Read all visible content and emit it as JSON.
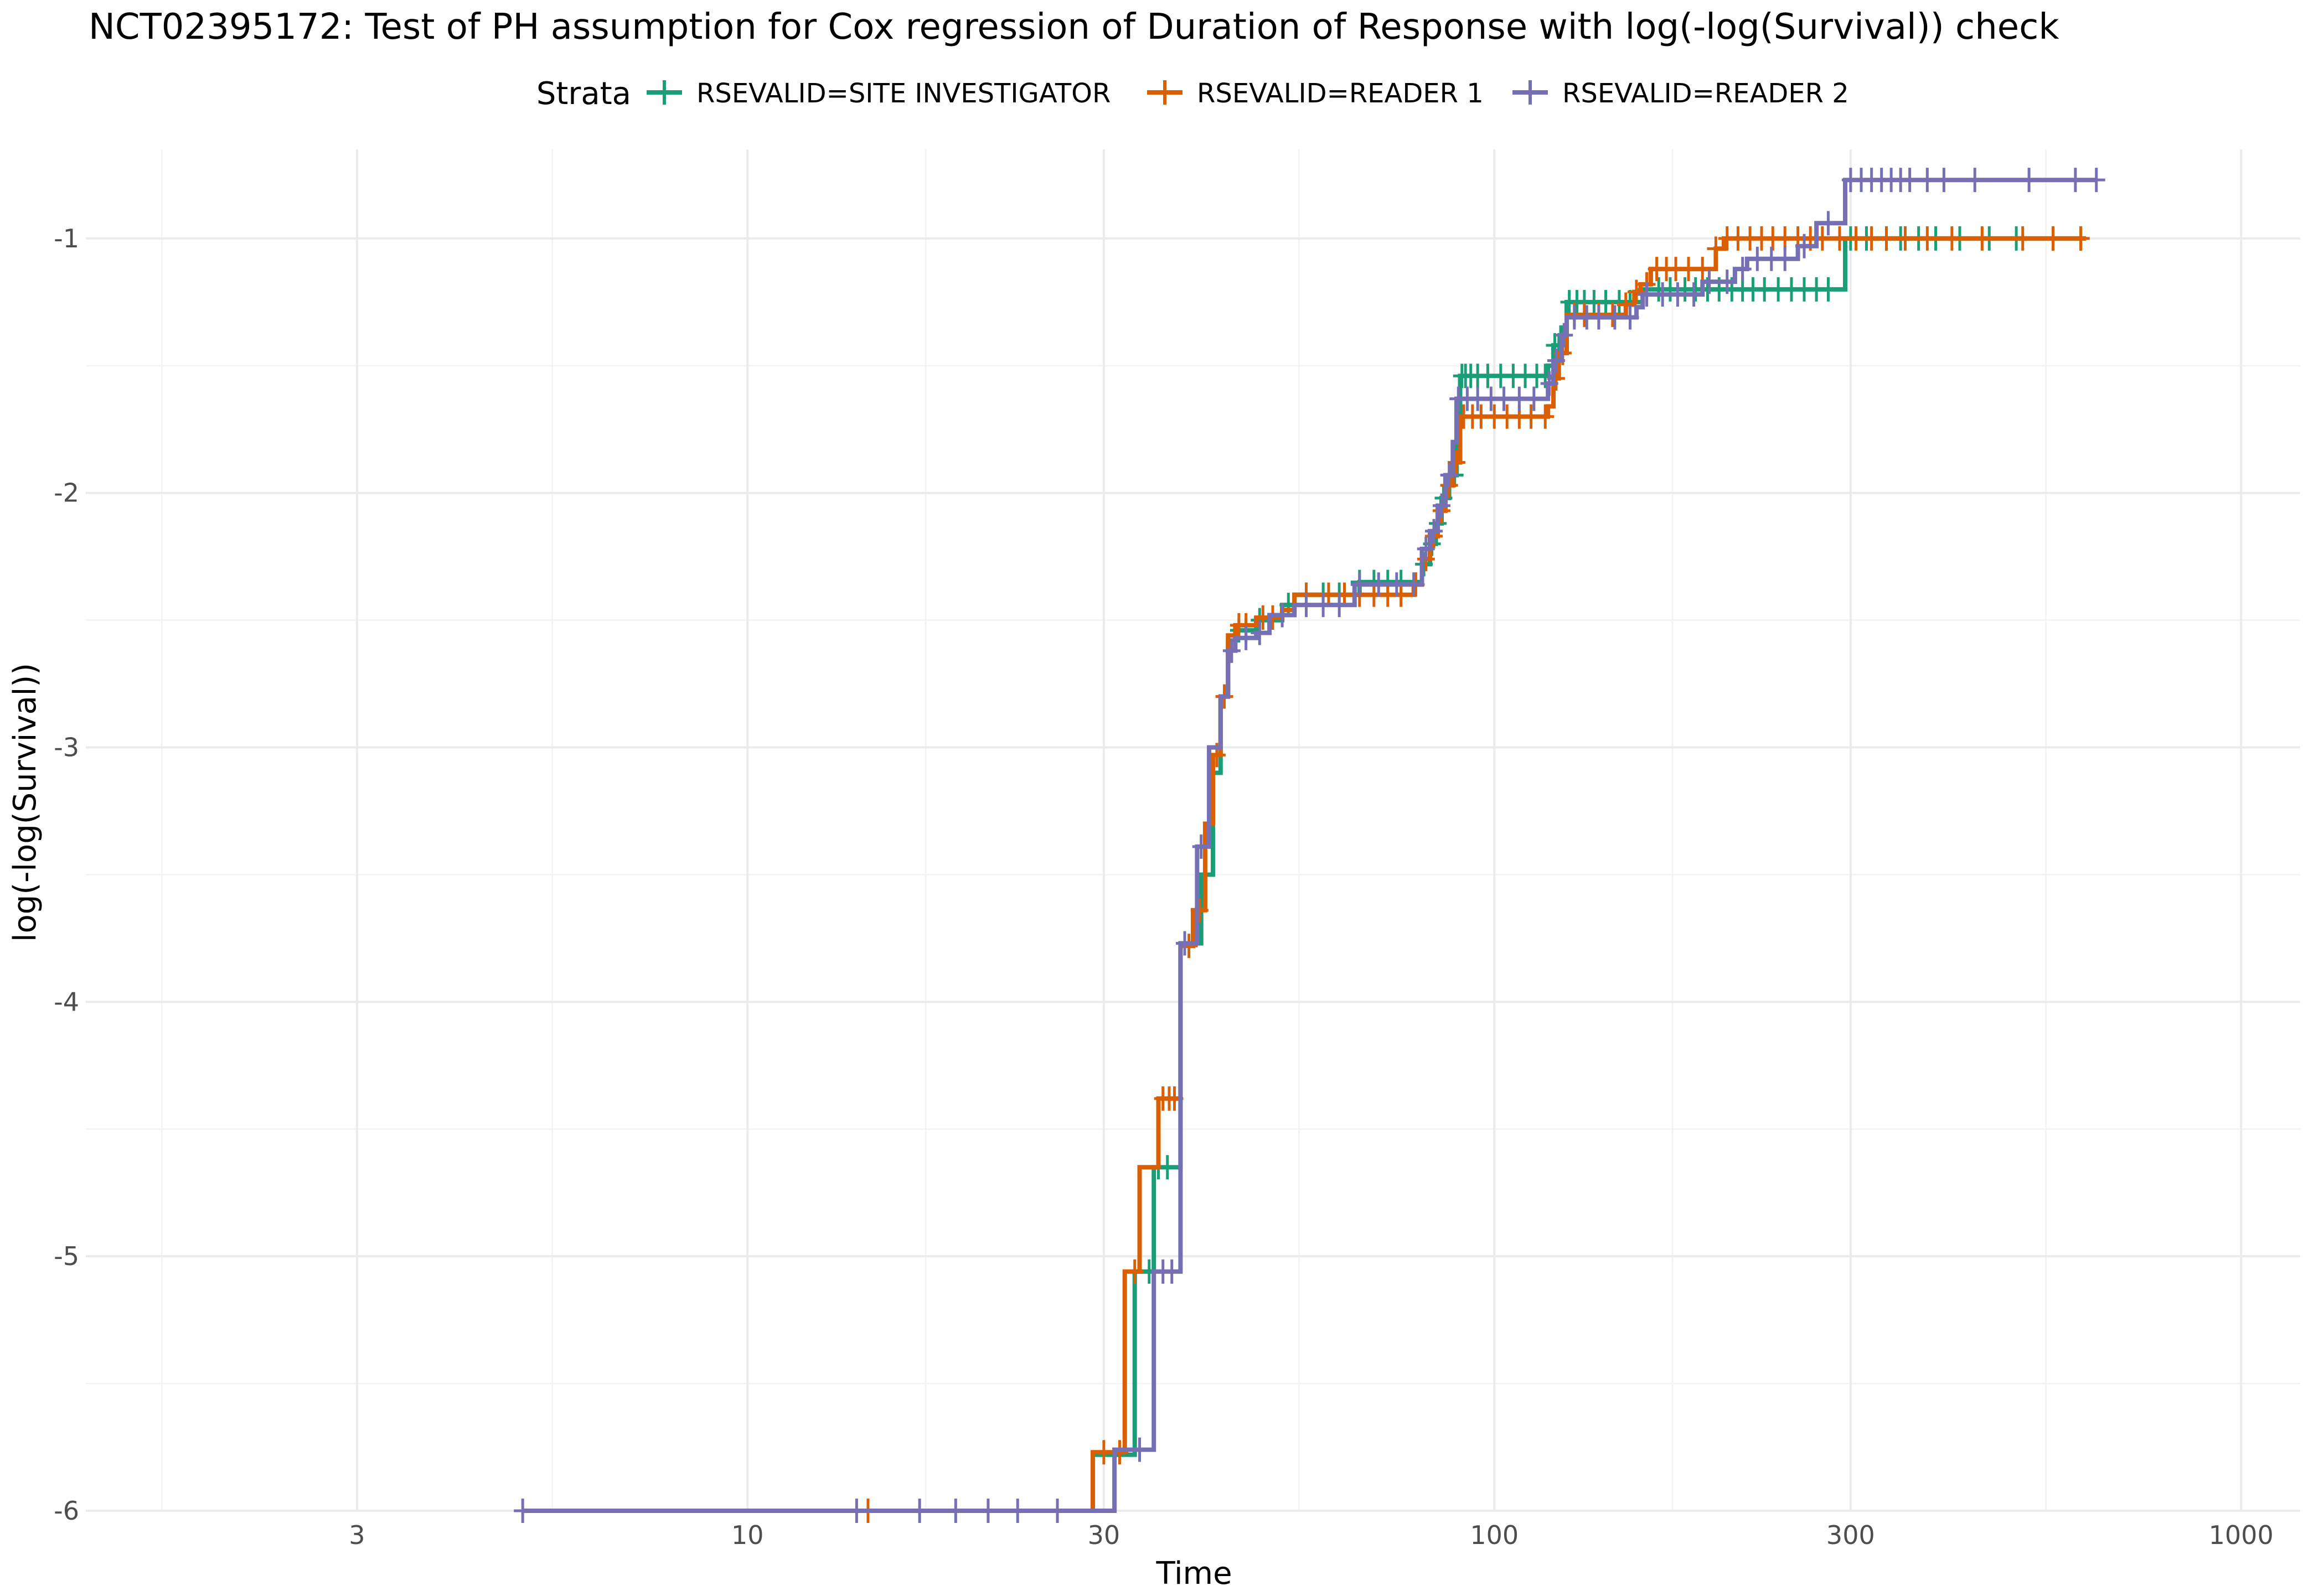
{
  "chart_data": {
    "type": "line",
    "title": "NCT02395172: Test of PH assumption for Cox regression of Duration of Response with log(-log(Survival)) check",
    "xlabel": "Time",
    "ylabel": "log(-log(Survival))",
    "x_scale": "log10",
    "xlim": [
      1.3,
      1200
    ],
    "ylim": [
      -6,
      -0.65
    ],
    "x_ticks": [
      3,
      10,
      30,
      100,
      300,
      1000
    ],
    "x_tick_labels": [
      "3",
      "10",
      "30",
      "100",
      "300",
      "1000"
    ],
    "y_ticks": [
      -6,
      -5,
      -4,
      -3,
      -2,
      -1
    ],
    "y_tick_labels": [
      "-6",
      "-5",
      "-4",
      "-3",
      "-2",
      "-1"
    ],
    "grid": true,
    "legend": {
      "title": "Strata",
      "position": "top"
    },
    "series": [
      {
        "name": "RSEVALID=SITE INVESTIGATOR",
        "color": "#1b9e77",
        "steps": [
          [
            5.0,
            -6.0
          ],
          [
            29.0,
            -5.78
          ],
          [
            33.0,
            -5.06
          ],
          [
            35.0,
            -4.65
          ],
          [
            38.0,
            -3.77
          ],
          [
            40.5,
            -3.5
          ],
          [
            42.0,
            -3.1
          ],
          [
            43.0,
            -2.8
          ],
          [
            44.0,
            -2.58
          ],
          [
            45.0,
            -2.54
          ],
          [
            48.0,
            -2.5
          ],
          [
            52.0,
            -2.44
          ],
          [
            54.0,
            -2.4
          ],
          [
            66.0,
            -2.35
          ],
          [
            80.0,
            -2.28
          ],
          [
            82.0,
            -2.2
          ],
          [
            83.5,
            -2.12
          ],
          [
            85.0,
            -2.02
          ],
          [
            87.0,
            -1.93
          ],
          [
            89.0,
            -1.8
          ],
          [
            90.0,
            -1.54
          ],
          [
            118.0,
            -1.5
          ],
          [
            120.0,
            -1.42
          ],
          [
            123.0,
            -1.35
          ],
          [
            125.0,
            -1.25
          ],
          [
            158.0,
            -1.2
          ],
          [
            295.0,
            -1.0
          ]
        ],
        "end": 620,
        "censor_times": [
          34.5,
          35.5,
          36.5,
          45.5,
          46.5,
          48.5,
          53,
          56,
          59,
          62,
          66,
          69,
          72,
          75,
          80.5,
          82.5,
          84,
          85.5,
          87.5,
          88.5,
          90.5,
          91.5,
          93,
          95,
          98,
          102,
          106,
          110,
          114,
          117,
          120.5,
          122,
          126,
          129,
          132,
          136,
          141,
          147,
          152,
          160,
          166,
          172,
          180,
          186,
          193,
          200,
          208,
          215,
          222,
          230,
          240,
          250,
          260,
          270,
          280,
          300,
          315,
          335,
          350,
          370,
          390,
          420,
          460,
          500,
          560,
          610
        ]
      },
      {
        "name": "RSEVALID=READER 1",
        "color": "#d95f02",
        "steps": [
          [
            5.0,
            -6.0
          ],
          [
            29.0,
            -5.77
          ],
          [
            32.0,
            -5.06
          ],
          [
            33.5,
            -4.65
          ],
          [
            35.5,
            -4.38
          ],
          [
            38.0,
            -3.78
          ],
          [
            39.5,
            -3.64
          ],
          [
            41.0,
            -3.3
          ],
          [
            42.0,
            -3.03
          ],
          [
            43.0,
            -2.8
          ],
          [
            44.0,
            -2.56
          ],
          [
            45.0,
            -2.52
          ],
          [
            48.0,
            -2.49
          ],
          [
            52.0,
            -2.46
          ],
          [
            54.0,
            -2.4
          ],
          [
            78.0,
            -2.36
          ],
          [
            80.0,
            -2.26
          ],
          [
            82.0,
            -2.17
          ],
          [
            84.0,
            -2.07
          ],
          [
            86.0,
            -1.97
          ],
          [
            88.0,
            -1.88
          ],
          [
            90.0,
            -1.7
          ],
          [
            118.0,
            -1.66
          ],
          [
            120.0,
            -1.55
          ],
          [
            122.0,
            -1.45
          ],
          [
            125.0,
            -1.3
          ],
          [
            150.0,
            -1.26
          ],
          [
            154.0,
            -1.21
          ],
          [
            157.0,
            -1.18
          ],
          [
            162.0,
            -1.12
          ],
          [
            198.0,
            -1.04
          ],
          [
            203.0,
            -1.0
          ]
        ],
        "end": 620,
        "censor_times": [
          14.5,
          30,
          31.5,
          33,
          36,
          36.7,
          37.3,
          39,
          40.3,
          42.5,
          43.5,
          45.5,
          46.5,
          49,
          50.5,
          56,
          60,
          63,
          66,
          69,
          72,
          75,
          78.5,
          81,
          83,
          85,
          87,
          89,
          91,
          93.5,
          96,
          100,
          104,
          108,
          112,
          117,
          121,
          123.5,
          128,
          132,
          138,
          144,
          150,
          155,
          160,
          165,
          170,
          175,
          182,
          190,
          198,
          205,
          212,
          220,
          228,
          236,
          245,
          255,
          265,
          275,
          290,
          305,
          320,
          335,
          355,
          380,
          410,
          450,
          510,
          560,
          610
        ]
      },
      {
        "name": "RSEVALID=READER 2",
        "color": "#7570b3",
        "steps": [
          [
            5.0,
            -6.0
          ],
          [
            31.0,
            -5.76
          ],
          [
            35.0,
            -5.06
          ],
          [
            38.0,
            -3.77
          ],
          [
            40.0,
            -3.39
          ],
          [
            41.5,
            -3.0
          ],
          [
            43.0,
            -2.8
          ],
          [
            44.0,
            -2.62
          ],
          [
            45.0,
            -2.57
          ],
          [
            48.0,
            -2.55
          ],
          [
            50.0,
            -2.48
          ],
          [
            54.0,
            -2.44
          ],
          [
            65.0,
            -2.36
          ],
          [
            80.0,
            -2.22
          ],
          [
            82.0,
            -2.15
          ],
          [
            84.0,
            -2.05
          ],
          [
            86.0,
            -1.93
          ],
          [
            88.0,
            -1.8
          ],
          [
            89.0,
            -1.63
          ],
          [
            118.0,
            -1.57
          ],
          [
            120.0,
            -1.48
          ],
          [
            123.0,
            -1.38
          ],
          [
            125.0,
            -1.31
          ],
          [
            155.0,
            -1.27
          ],
          [
            158.0,
            -1.22
          ],
          [
            190.0,
            -1.17
          ],
          [
            210.0,
            -1.12
          ],
          [
            218.0,
            -1.08
          ],
          [
            255.0,
            -1.03
          ],
          [
            270.0,
            -0.94
          ],
          [
            295.0,
            -0.77
          ]
        ],
        "end": 640,
        "censor_times": [
          5,
          14,
          17,
          19,
          21,
          23,
          26,
          33.5,
          36,
          37,
          38.5,
          40.5,
          44.5,
          46.5,
          48.5,
          52,
          56,
          59,
          62,
          66,
          70,
          74,
          78,
          81,
          83,
          85,
          87,
          89.5,
          92,
          95,
          99,
          103,
          108,
          113,
          118.5,
          121,
          124,
          128,
          133,
          138,
          145,
          152,
          160,
          168,
          176,
          185,
          194,
          205,
          215,
          225,
          235,
          245,
          260,
          280,
          300,
          310,
          320,
          330,
          340,
          350,
          360,
          380,
          400,
          440,
          520,
          600,
          640
        ]
      }
    ]
  }
}
